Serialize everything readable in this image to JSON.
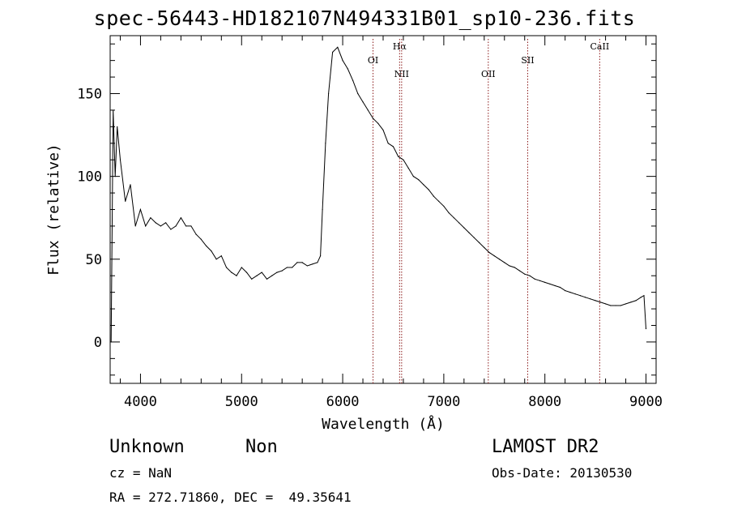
{
  "chart_data": {
    "type": "line",
    "title": "spec-56443-HD182107N494331B01_sp10-236.fits",
    "xlabel": "Wavelength (Å)",
    "ylabel": "Flux (relative)",
    "xlim": [
      3700,
      9100
    ],
    "ylim": [
      -25,
      185
    ],
    "x_ticks": [
      4000,
      5000,
      6000,
      7000,
      8000,
      9000
    ],
    "y_ticks": [
      0,
      50,
      100,
      150
    ],
    "grid": false,
    "series": [
      {
        "x": [
          3710,
          3730,
          3750,
          3770,
          3800,
          3850,
          3900,
          3950,
          4000,
          4050,
          4100,
          4150,
          4200,
          4250,
          4300,
          4350,
          4400,
          4450,
          4500,
          4550,
          4600,
          4650,
          4700,
          4750,
          4800,
          4850,
          4900,
          4950,
          5000,
          5050,
          5100,
          5150,
          5200,
          5250,
          5300,
          5350,
          5400,
          5450,
          5500,
          5550,
          5600,
          5650,
          5700,
          5750,
          5780,
          5800,
          5830,
          5860,
          5900,
          5950,
          6000,
          6050,
          6100,
          6150,
          6200,
          6250,
          6300,
          6350,
          6400,
          6450,
          6500,
          6550,
          6600,
          6650,
          6700,
          6750,
          6800,
          6850,
          6900,
          6950,
          7000,
          7050,
          7100,
          7150,
          7200,
          7250,
          7300,
          7350,
          7400,
          7450,
          7500,
          7550,
          7600,
          7650,
          7700,
          7750,
          7800,
          7850,
          7900,
          7950,
          8000,
          8050,
          8100,
          8150,
          8200,
          8250,
          8300,
          8350,
          8400,
          8450,
          8500,
          8550,
          8600,
          8650,
          8700,
          8750,
          8800,
          8850,
          8900,
          8950,
          8980,
          9000
        ],
        "y": [
          0,
          140,
          100,
          130,
          110,
          85,
          95,
          70,
          80,
          70,
          75,
          72,
          70,
          72,
          68,
          70,
          75,
          70,
          70,
          65,
          62,
          58,
          55,
          50,
          52,
          45,
          42,
          40,
          45,
          42,
          38,
          40,
          42,
          38,
          40,
          42,
          43,
          45,
          45,
          48,
          48,
          46,
          47,
          48,
          52,
          80,
          120,
          150,
          175,
          178,
          170,
          165,
          158,
          150,
          145,
          140,
          135,
          132,
          128,
          120,
          118,
          112,
          110,
          105,
          100,
          98,
          95,
          92,
          88,
          85,
          82,
          78,
          75,
          72,
          69,
          66,
          63,
          60,
          57,
          54,
          52,
          50,
          48,
          46,
          45,
          43,
          41,
          40,
          38,
          37,
          36,
          35,
          34,
          33,
          31,
          30,
          29,
          28,
          27,
          26,
          25,
          24,
          23,
          22,
          22,
          22,
          23,
          24,
          25,
          27,
          28,
          8
        ]
      }
    ],
    "line_labels": [
      {
        "label": "OI",
        "wavelength": 6300
      },
      {
        "label": "Hα",
        "wavelength": 6563
      },
      {
        "label": "NII",
        "wavelength": 6583
      },
      {
        "label": "OII",
        "wavelength": 7440
      },
      {
        "label": "SII",
        "wavelength": 7830
      },
      {
        "label": "CaII",
        "wavelength": 8542
      }
    ],
    "line_color": "#8b1a1a"
  },
  "info": {
    "class": "Unknown",
    "subclass": "Non",
    "cz": "cz = NaN",
    "radec": "RA = 272.71860, DEC =  49.35641",
    "survey": "LAMOST DR2",
    "obsdate": "Obs-Date: 20130530"
  }
}
